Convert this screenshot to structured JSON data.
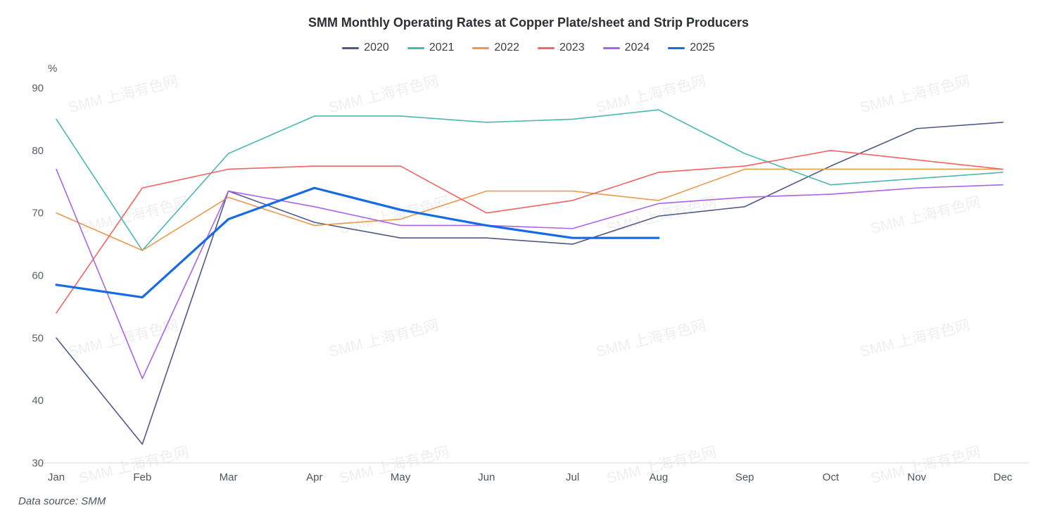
{
  "title": "SMM Monthly Operating Rates at Copper Plate/sheet and Strip Producers",
  "y_axis_unit": "%",
  "data_source_label": "Data source:  SMM",
  "watermark_text": "SMM 上海有色网",
  "chart_data": {
    "type": "line",
    "categories": [
      "Jan",
      "Feb",
      "Mar",
      "Apr",
      "May",
      "Jun",
      "Jul",
      "Aug",
      "Sep",
      "Oct",
      "Nov",
      "Dec"
    ],
    "ylim": [
      30,
      90
    ],
    "yticks": [
      30,
      40,
      50,
      60,
      70,
      80,
      90
    ],
    "grid": false,
    "legend_position": "top",
    "title": "SMM Monthly Operating Rates at Copper Plate/sheet and Strip Producers",
    "xlabel": "",
    "ylabel": "%",
    "series": [
      {
        "name": "2020",
        "color": "#4e598a",
        "line_width": 1.6,
        "values": [
          50,
          33,
          73.5,
          68.5,
          66,
          66,
          65,
          69.5,
          71,
          77.5,
          83.5,
          84.5
        ]
      },
      {
        "name": "2021",
        "color": "#49b8b0",
        "line_width": 1.6,
        "values": [
          85,
          64,
          79.5,
          85.5,
          85.5,
          84.5,
          85,
          86.5,
          79.5,
          74.5,
          75.5,
          76.5
        ]
      },
      {
        "name": "2022",
        "color": "#e89a4d",
        "line_width": 1.6,
        "values": [
          70,
          64,
          72.5,
          68,
          69,
          73.5,
          73.5,
          72,
          77,
          77,
          77,
          77
        ]
      },
      {
        "name": "2023",
        "color": "#f56262",
        "line_width": 1.6,
        "values": [
          54,
          74,
          77,
          77.5,
          77.5,
          70,
          72,
          76.5,
          77.5,
          80,
          78.5,
          77
        ]
      },
      {
        "name": "2024",
        "color": "#ab63e8",
        "line_width": 1.6,
        "values": [
          77,
          43.5,
          73.5,
          71,
          68,
          68,
          67.5,
          71.5,
          72.5,
          73,
          74,
          74.5
        ]
      },
      {
        "name": "2025",
        "color": "#156be5",
        "line_width": 3.2,
        "values": [
          58.5,
          56.5,
          69,
          74,
          70.5,
          68,
          66,
          66,
          null,
          null,
          null,
          null
        ]
      }
    ]
  }
}
